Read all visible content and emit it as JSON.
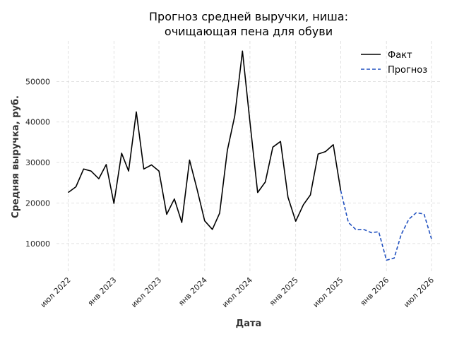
{
  "chart_data": {
    "type": "line",
    "title": [
      "Прогноз средней выручки, ниша:",
      "очищающая пена для обуви"
    ],
    "xlabel": "Дата",
    "ylabel": "Средняя выручка, руб.",
    "ylim": [
      3000,
      60000
    ],
    "yticks": [
      10000,
      20000,
      30000,
      40000,
      50000
    ],
    "xticks": [
      {
        "date": "2022-07-01",
        "label": "июл 2022"
      },
      {
        "date": "2023-01-01",
        "label": "янв 2023"
      },
      {
        "date": "2023-07-01",
        "label": "июл 2023"
      },
      {
        "date": "2024-01-01",
        "label": "янв 2024"
      },
      {
        "date": "2024-07-01",
        "label": "июл 2024"
      },
      {
        "date": "2025-01-01",
        "label": "янв 2025"
      },
      {
        "date": "2025-07-01",
        "label": "июл 2025"
      },
      {
        "date": "2026-01-01",
        "label": "янв 2026"
      },
      {
        "date": "2026-07-01",
        "label": "июл 2026"
      }
    ],
    "grid": true,
    "legend_position": "top-right",
    "series": [
      {
        "name": "Факт",
        "color": "#000000",
        "style": "solid",
        "points": [
          [
            "2022-07-01",
            22600
          ],
          [
            "2022-08-01",
            24000
          ],
          [
            "2022-09-01",
            28400
          ],
          [
            "2022-10-01",
            27900
          ],
          [
            "2022-11-01",
            26000
          ],
          [
            "2022-12-01",
            29500
          ],
          [
            "2023-01-01",
            19900
          ],
          [
            "2023-02-01",
            32300
          ],
          [
            "2023-03-01",
            27900
          ],
          [
            "2023-04-01",
            42500
          ],
          [
            "2023-05-01",
            28400
          ],
          [
            "2023-06-01",
            29400
          ],
          [
            "2023-07-01",
            27900
          ],
          [
            "2023-08-01",
            17200
          ],
          [
            "2023-09-01",
            21000
          ],
          [
            "2023-10-01",
            15200
          ],
          [
            "2023-11-01",
            30600
          ],
          [
            "2023-12-01",
            23500
          ],
          [
            "2024-01-01",
            15600
          ],
          [
            "2024-02-01",
            13500
          ],
          [
            "2024-03-01",
            17500
          ],
          [
            "2024-04-01",
            33000
          ],
          [
            "2024-05-01",
            41500
          ],
          [
            "2024-06-01",
            57500
          ],
          [
            "2024-07-01",
            40000
          ],
          [
            "2024-08-01",
            22600
          ],
          [
            "2024-09-01",
            25200
          ],
          [
            "2024-10-01",
            33800
          ],
          [
            "2024-11-01",
            35200
          ],
          [
            "2024-12-01",
            21400
          ],
          [
            "2025-01-01",
            15500
          ],
          [
            "2025-02-01",
            19600
          ],
          [
            "2025-03-01",
            22000
          ],
          [
            "2025-04-01",
            32100
          ],
          [
            "2025-05-01",
            32700
          ],
          [
            "2025-06-01",
            34400
          ],
          [
            "2025-07-01",
            23100
          ]
        ]
      },
      {
        "name": "Прогноз",
        "color": "#1f4fbf",
        "style": "dashed",
        "points": [
          [
            "2025-07-01",
            23100
          ],
          [
            "2025-08-01",
            15200
          ],
          [
            "2025-09-01",
            13400
          ],
          [
            "2025-10-01",
            13500
          ],
          [
            "2025-11-01",
            12700
          ],
          [
            "2025-12-01",
            12900
          ],
          [
            "2026-01-01",
            5900
          ],
          [
            "2026-02-01",
            6400
          ],
          [
            "2026-03-01",
            12200
          ],
          [
            "2026-04-01",
            16000
          ],
          [
            "2026-05-01",
            17600
          ],
          [
            "2026-06-01",
            17300
          ],
          [
            "2026-07-01",
            11200
          ]
        ]
      }
    ]
  }
}
